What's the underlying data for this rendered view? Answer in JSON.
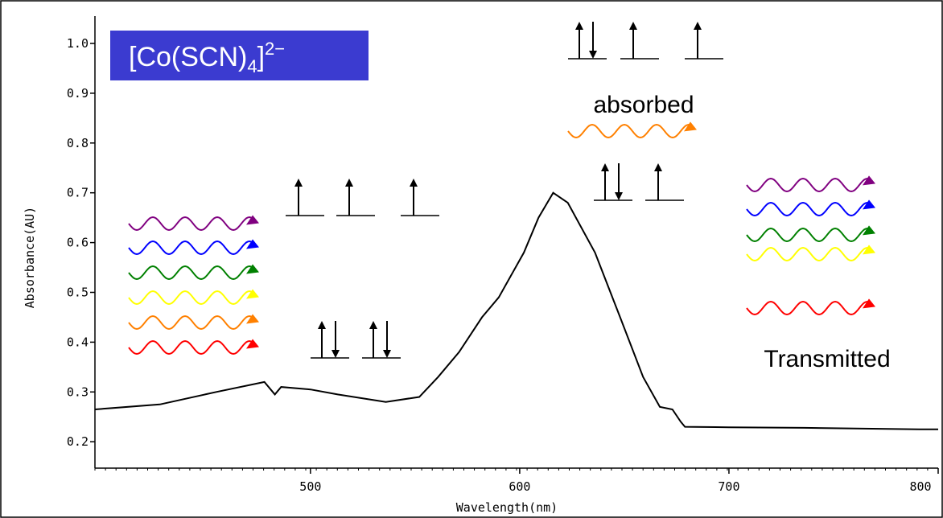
{
  "chart_data": {
    "type": "line",
    "title": {
      "main": "[Co(SCN)",
      "sub": "4",
      "close": "]",
      "sup": "2−"
    },
    "x_label": "Wavelength(nm)",
    "y_label": "Absorbance(AU)",
    "annotations": {
      "absorbed": "absorbed",
      "transmitted": "Transmitted"
    },
    "xlim": [
      397,
      800
    ],
    "ylim": [
      0.147,
      1.0
    ],
    "xticks": [
      500,
      600,
      700,
      800
    ],
    "yticks": [
      {
        "value": 1,
        "label": "1.0"
      },
      0.9,
      0.8,
      0.7,
      0.6,
      0.5,
      0.4,
      0.3,
      0.2
    ],
    "series": [
      {
        "color": "#000000",
        "x": [
          397,
          428,
          455,
          478,
          483,
          486,
          500,
          513,
          536,
          552,
          561,
          571,
          582,
          590,
          602,
          609,
          616,
          623,
          636,
          648,
          659,
          667,
          673,
          677,
          679,
          700,
          736,
          791,
          800
        ],
        "values": [
          0.265,
          0.275,
          0.3,
          0.32,
          0.295,
          0.31,
          0.305,
          0.295,
          0.28,
          0.29,
          0.33,
          0.38,
          0.45,
          0.49,
          0.58,
          0.65,
          0.7,
          0.68,
          0.58,
          0.45,
          0.33,
          0.27,
          0.265,
          0.24,
          0.23,
          0.229,
          0.228,
          0.225,
          0.225
        ]
      }
    ]
  }
}
